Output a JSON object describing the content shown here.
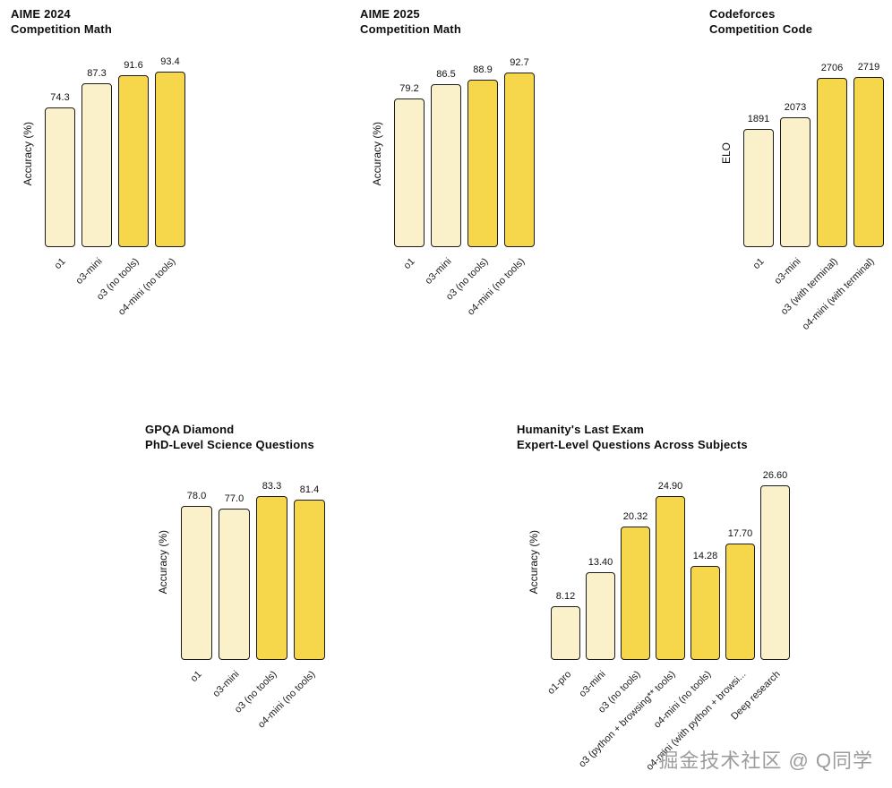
{
  "watermark": {
    "text": "掘金技术社区 @ Q同学"
  },
  "colors": {
    "bar_base": "#FAF1CA",
    "bar_highlight": "#F6D64A",
    "bar_border": "#1c1c1c",
    "title_text": "#0d0d0d",
    "watermark_text": "#9c9c9c"
  },
  "chart_data": [
    {
      "type": "bar",
      "title": "AIME 2024 Competition Math",
      "title_lines": [
        "AIME 2024",
        "Competition Math"
      ],
      "ylabel": "Accuracy (%)",
      "xlabel": "",
      "categories": [
        "o1",
        "o3-mini",
        "o3 (no tools)",
        "o4-mini (no tools)"
      ],
      "values": [
        74.3,
        87.3,
        91.6,
        93.4
      ],
      "data_labels": [
        "74.3",
        "87.3",
        "91.6",
        "93.4"
      ],
      "highlight": [
        false,
        false,
        true,
        true
      ],
      "ylim": [
        0,
        100
      ],
      "grid": false,
      "legend": "none"
    },
    {
      "type": "bar",
      "title": "AIME 2025 Competition Math",
      "title_lines": [
        "AIME 2025",
        "Competition Math"
      ],
      "ylabel": "Accuracy (%)",
      "xlabel": "",
      "categories": [
        "o1",
        "o3-mini",
        "o3 (no tools)",
        "o4-mini (no tools)"
      ],
      "values": [
        79.2,
        86.5,
        88.9,
        92.7
      ],
      "data_labels": [
        "79.2",
        "86.5",
        "88.9",
        "92.7"
      ],
      "highlight": [
        false,
        false,
        true,
        true
      ],
      "ylim": [
        0,
        100
      ],
      "grid": false,
      "legend": "none"
    },
    {
      "type": "bar",
      "title": "Codeforces Competition Code",
      "title_lines": [
        "Codeforces",
        "Competition Code"
      ],
      "ylabel": "ELO",
      "xlabel": "",
      "categories": [
        "o1",
        "o3-mini",
        "o3 (with terminal)",
        "o4-mini (with terminal)"
      ],
      "values": [
        1891,
        2073,
        2706,
        2719
      ],
      "data_labels": [
        "1891",
        "2073",
        "2706",
        "2719"
      ],
      "highlight": [
        false,
        false,
        true,
        true
      ],
      "ylim": [
        0,
        3000
      ],
      "grid": false,
      "legend": "none"
    },
    {
      "type": "bar",
      "title": "GPQA Diamond PhD-Level Science Questions",
      "title_lines": [
        "GPQA Diamond",
        "PhD-Level Science Questions"
      ],
      "ylabel": "Accuracy (%)",
      "xlabel": "",
      "categories": [
        "o1",
        "o3-mini",
        "o3 (no tools)",
        "o4-mini (no tools)"
      ],
      "values": [
        78.0,
        77.0,
        83.3,
        81.4
      ],
      "data_labels": [
        "78.0",
        "77.0",
        "83.3",
        "81.4"
      ],
      "highlight": [
        false,
        false,
        true,
        true
      ],
      "ylim": [
        0,
        100
      ],
      "grid": false,
      "legend": "none"
    },
    {
      "type": "bar",
      "title": "Humanity's Last Exam Expert-Level Questions Across Subjects",
      "title_lines": [
        "Humanity's Last Exam",
        "Expert-Level Questions Across Subjects"
      ],
      "ylabel": "Accuracy (%)",
      "xlabel": "",
      "categories": [
        "o1-pro",
        "o3-mini",
        "o3 (no tools)",
        "o3 (python + browsing** tools)",
        "o4-mini (no tools)",
        "o4-mini (with python + browsi...",
        "Deep research"
      ],
      "values": [
        8.12,
        13.4,
        20.32,
        24.9,
        14.28,
        17.7,
        26.6
      ],
      "data_labels": [
        "8.12",
        "13.40",
        "20.32",
        "24.90",
        "14.28",
        "17.70",
        "26.60"
      ],
      "highlight": [
        false,
        false,
        true,
        true,
        true,
        true,
        false
      ],
      "ylim": [
        0,
        30
      ],
      "grid": false,
      "legend": "none"
    }
  ]
}
